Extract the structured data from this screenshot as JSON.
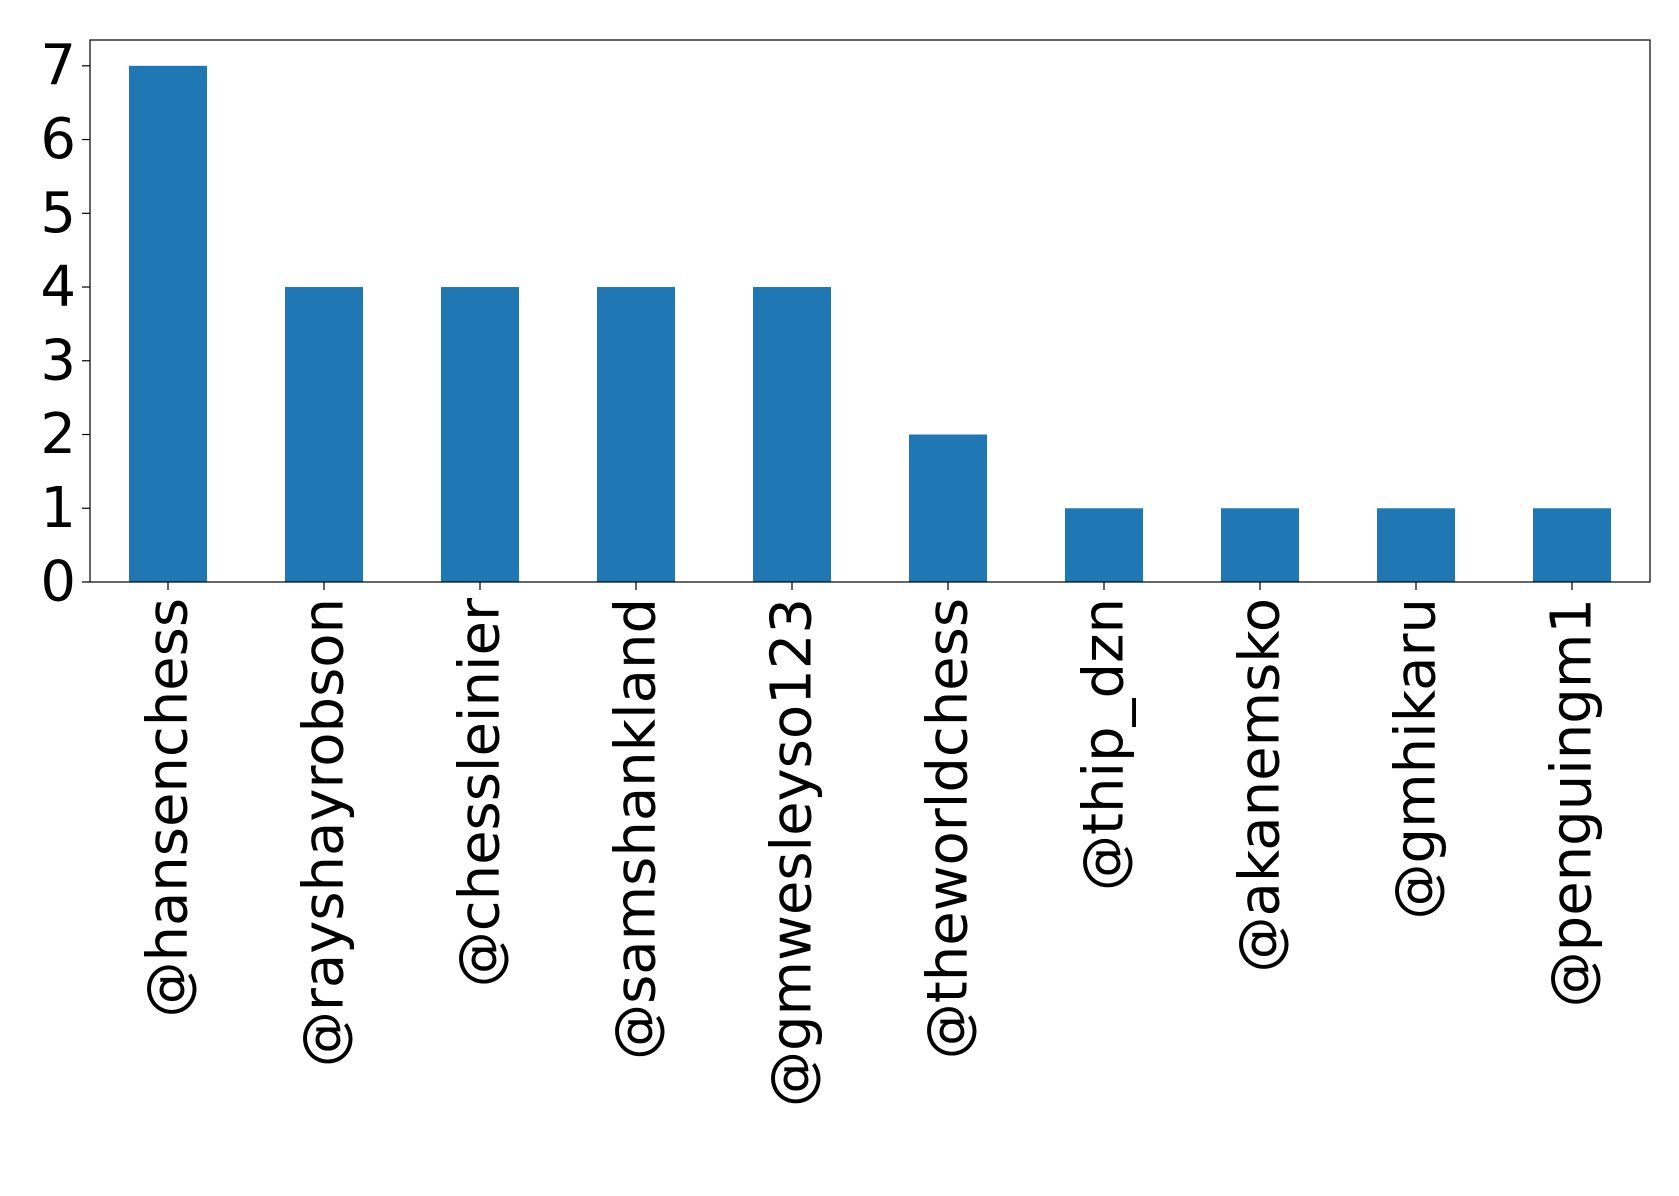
{
  "chart_data": {
    "type": "bar",
    "title": "",
    "xlabel": "",
    "ylabel": "",
    "categories": [
      "@hansenchess",
      "@rayshayrobson",
      "@chessleinier",
      "@samshankland",
      "@gmwesleyso123",
      "@theworldchess",
      "@thip_dzn",
      "@akanemsko",
      "@gmhikaru",
      "@penguingm1"
    ],
    "values": [
      7,
      4,
      4,
      4,
      4,
      2,
      1,
      1,
      1,
      1
    ],
    "ylim": [
      0,
      7.35
    ],
    "yticks": [
      0,
      1,
      2,
      3,
      4,
      5,
      6,
      7
    ],
    "grid": false,
    "legend": "none",
    "colors": {
      "bar": "#1f77b4",
      "axis": "#000000",
      "background": "#ffffff"
    }
  }
}
